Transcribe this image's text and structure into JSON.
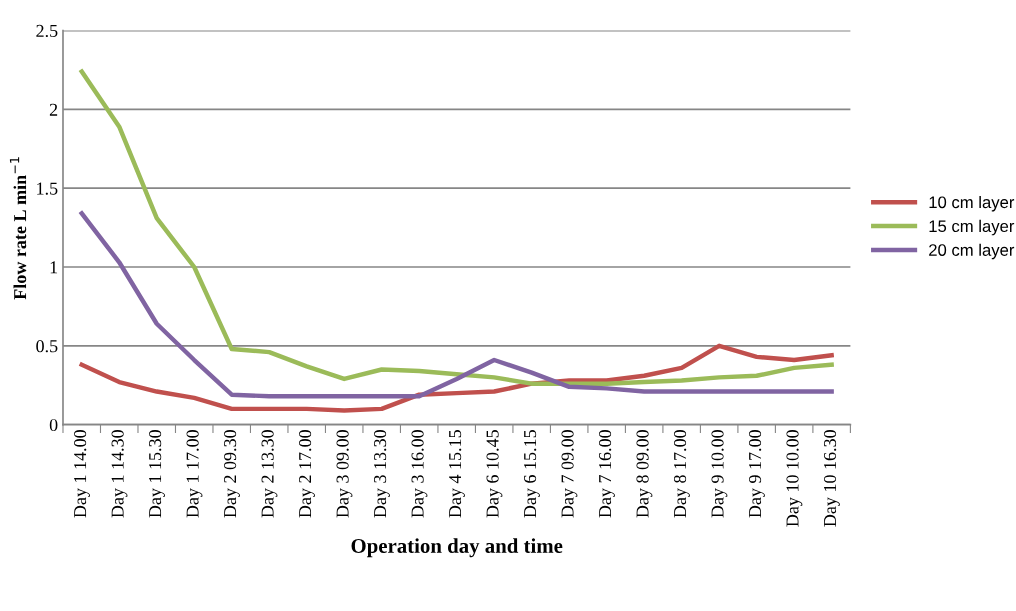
{
  "chart_data": {
    "type": "line",
    "xlabel": "Operation day and time",
    "ylabel": "Flow rate L min$^{−1}$",
    "categories": [
      "Day 1 14.00",
      "Day 1 14.30",
      "Day 1 15.30",
      "Day 1 17.00",
      "Day 2 09.30",
      "Day 2 13.30",
      "Day 2 17.00",
      "Day 3 09.00",
      "Day 3 13.30",
      "Day 3 16.00",
      "Day 4 15.15",
      "Day 6 10.45",
      "Day 6 15.15",
      "Day 7 09.00",
      "Day 7 16.00",
      "Day 8 09.00",
      "Day 8 17.00",
      "Day 9 10.00",
      "Day 9 17.00",
      "Day 10 10.00",
      "Day 10 16.30"
    ],
    "series": [
      {
        "name": "10 cm layer",
        "color": "#c0504d",
        "values": [
          0.38,
          0.27,
          0.21,
          0.17,
          0.1,
          0.1,
          0.1,
          0.09,
          0.1,
          0.19,
          0.2,
          0.21,
          0.26,
          0.28,
          0.28,
          0.31,
          0.36,
          0.5,
          0.43,
          0.41,
          0.44
        ]
      },
      {
        "name": "15 cm layer",
        "color": "#9bbb59",
        "values": [
          2.24,
          1.89,
          1.31,
          1.0,
          0.48,
          0.46,
          0.37,
          0.29,
          0.35,
          0.34,
          0.32,
          0.3,
          0.26,
          0.26,
          0.26,
          0.27,
          0.28,
          0.3,
          0.31,
          0.36,
          0.38
        ]
      },
      {
        "name": "20 cm layer",
        "color": "#8064a2",
        "values": [
          1.34,
          1.03,
          0.64,
          0.41,
          0.19,
          0.18,
          0.18,
          0.18,
          0.18,
          0.18,
          0.29,
          0.41,
          0.33,
          0.24,
          0.23,
          0.21,
          0.21,
          0.21,
          0.21,
          0.21,
          0.21
        ]
      }
    ],
    "ylim": [
      0,
      2.5
    ],
    "yticks": [
      0,
      0.5,
      1,
      1.5,
      2,
      2.5
    ],
    "grid": "y",
    "legend": "right",
    "marker": "none",
    "line_style": "solid"
  }
}
